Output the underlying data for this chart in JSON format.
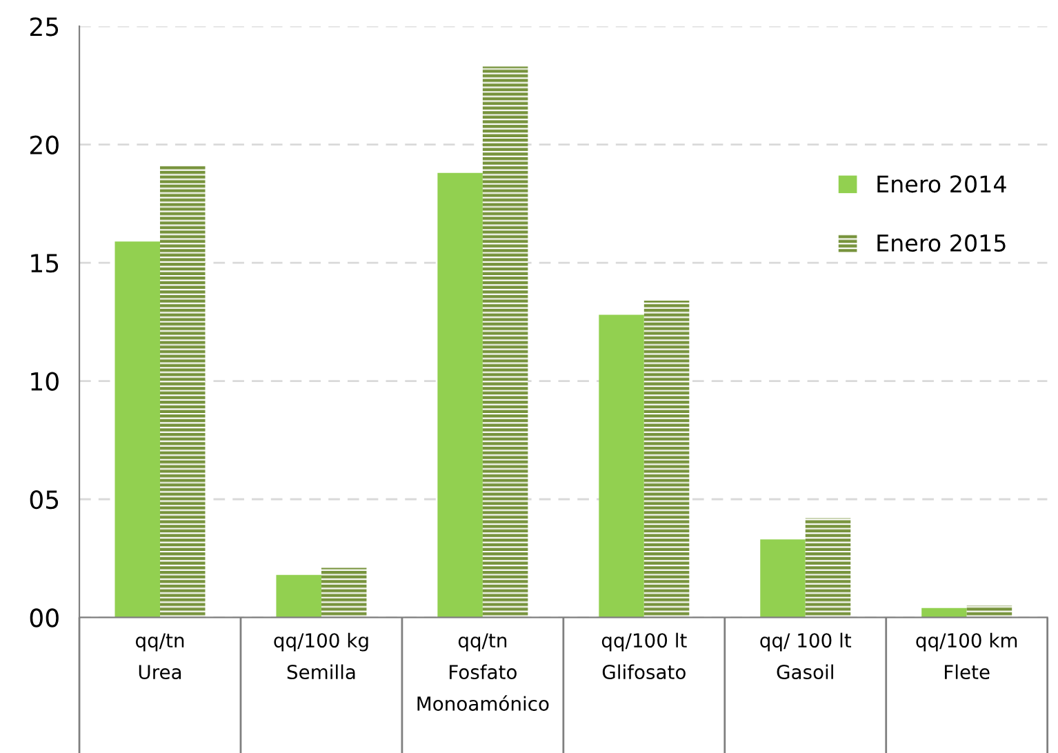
{
  "chart_data": {
    "type": "bar",
    "categories": [
      "qq/tn\nUrea",
      "qq/100 kg\nSemilla",
      "qq/tn\nFosfato\nMonoamónico",
      "qq/100 lt\nGlifosato",
      "qq/ 100 lt\nGasoil",
      "qq/100 km\nFlete"
    ],
    "series": [
      {
        "name": "Enero 2014",
        "color": "#92d050",
        "values": [
          15.9,
          1.8,
          18.8,
          12.8,
          3.3,
          0.4
        ]
      },
      {
        "name": "Enero 2015",
        "color": "#77933c",
        "values": [
          19.1,
          2.1,
          23.3,
          13.4,
          4.2,
          0.5
        ]
      }
    ],
    "ylim": [
      0,
      25
    ],
    "yticks": [
      {
        "value": 0,
        "label": "00"
      },
      {
        "value": 5,
        "label": "05"
      },
      10,
      15,
      20,
      25
    ],
    "grid": "y",
    "legend": "right"
  }
}
